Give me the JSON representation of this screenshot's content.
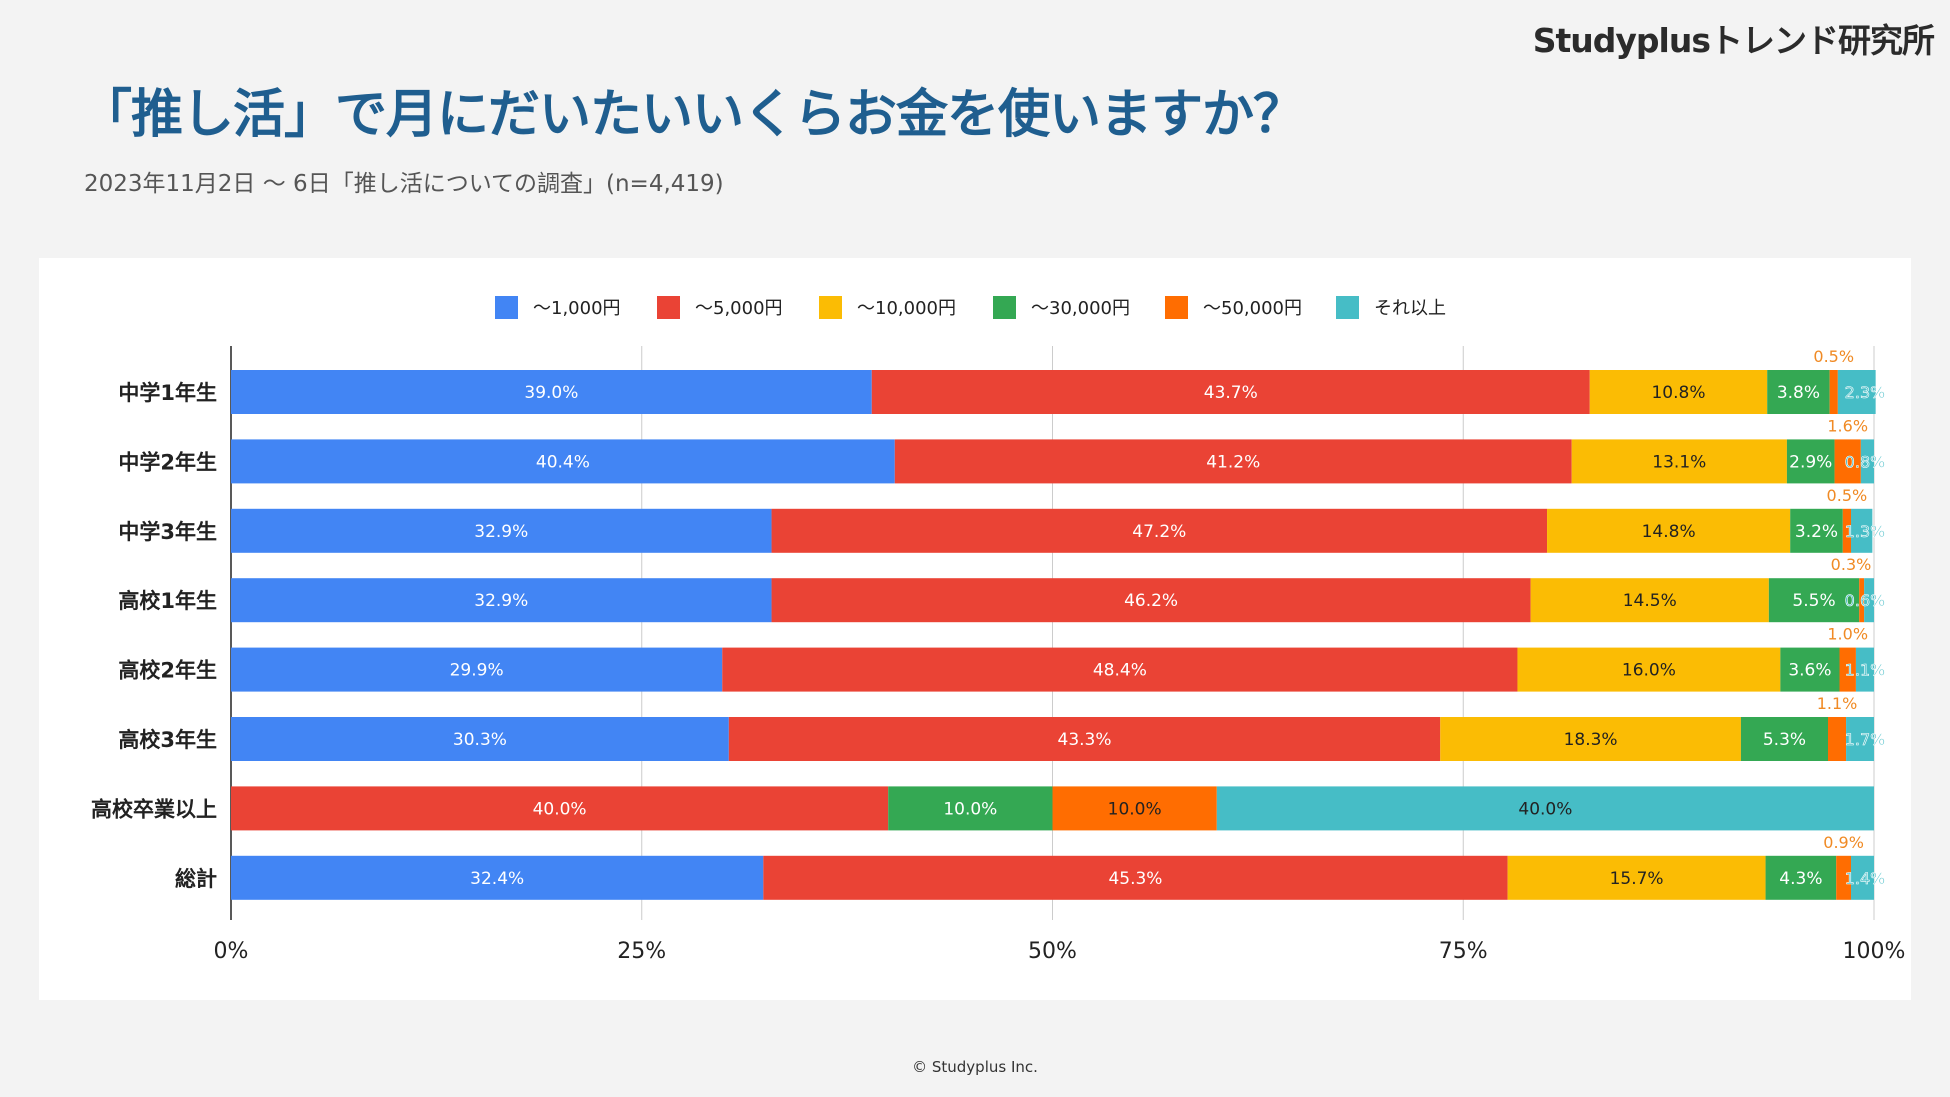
{
  "brand": "Studyplusトレンド研究所",
  "title": "「推し活」で月にだいたいいくらお金を使いますか？",
  "subtitle": "2023年11月2日 〜 6日「推し活についての調査」(n=4,419)",
  "footer": "© Studyplus Inc.",
  "chart_data": {
    "type": "bar",
    "orientation": "horizontal",
    "stacked": "percent",
    "legend_position": "top",
    "xlim": [
      0,
      100
    ],
    "x_ticks": [
      "0%",
      "25%",
      "50%",
      "75%",
      "100%"
    ],
    "categories": [
      "中学1年生",
      "中学2年生",
      "中学3年生",
      "高校1年生",
      "高校2年生",
      "高校3年生",
      "高校卒業以上",
      "総計"
    ],
    "series": [
      {
        "name": "〜1,000円",
        "color": "#4285f4",
        "label_color": "#ffffff",
        "values": [
          39.0,
          40.4,
          32.9,
          32.9,
          29.9,
          30.3,
          0,
          32.4
        ]
      },
      {
        "name": "〜5,000円",
        "color": "#ea4335",
        "label_color": "#ffffff",
        "values": [
          43.7,
          41.2,
          47.2,
          46.2,
          48.4,
          43.3,
          40.0,
          45.3
        ]
      },
      {
        "name": "〜10,000円",
        "color": "#fbbc04",
        "label_color": "#222222",
        "values": [
          10.8,
          13.1,
          14.8,
          14.5,
          16.0,
          18.3,
          0,
          15.7
        ]
      },
      {
        "name": "〜30,000円",
        "color": "#34a853",
        "label_color": "#ffffff",
        "values": [
          3.8,
          2.9,
          3.2,
          5.5,
          3.6,
          5.3,
          10.0,
          4.3
        ]
      },
      {
        "name": "〜50,000円",
        "color": "#ff6d01",
        "label_color": "#222222",
        "values": [
          0.5,
          1.6,
          0.5,
          0.3,
          1.0,
          1.1,
          10.0,
          0.9
        ]
      },
      {
        "name": "それ以上",
        "color": "#46bdc6",
        "label_color": "#222222",
        "values": [
          2.3,
          0.8,
          1.3,
          0.6,
          1.1,
          1.7,
          40.0,
          1.4
        ]
      }
    ],
    "value_labels": [
      [
        "39.0%",
        "43.7%",
        "10.8%",
        "3.8%",
        "0.5%",
        "2.3%"
      ],
      [
        "40.4%",
        "41.2%",
        "13.1%",
        "2.9%",
        "1.6%",
        "0.8%"
      ],
      [
        "32.9%",
        "47.2%",
        "14.8%",
        "3.2%",
        "0.5%",
        "1.3%"
      ],
      [
        "32.9%",
        "46.2%",
        "14.5%",
        "5.5%",
        "0.3%",
        "0.6%"
      ],
      [
        "29.9%",
        "48.4%",
        "16.0%",
        "3.6%",
        "1.0%",
        "1.1%"
      ],
      [
        "30.3%",
        "43.3%",
        "18.3%",
        "5.3%",
        "1.1%",
        "1.7%"
      ],
      [
        "",
        "40.0%",
        "",
        "10.0%",
        "10.0%",
        "40.0%"
      ],
      [
        "32.4%",
        "45.3%",
        "15.7%",
        "4.3%",
        "0.9%",
        "1.4%"
      ]
    ]
  }
}
